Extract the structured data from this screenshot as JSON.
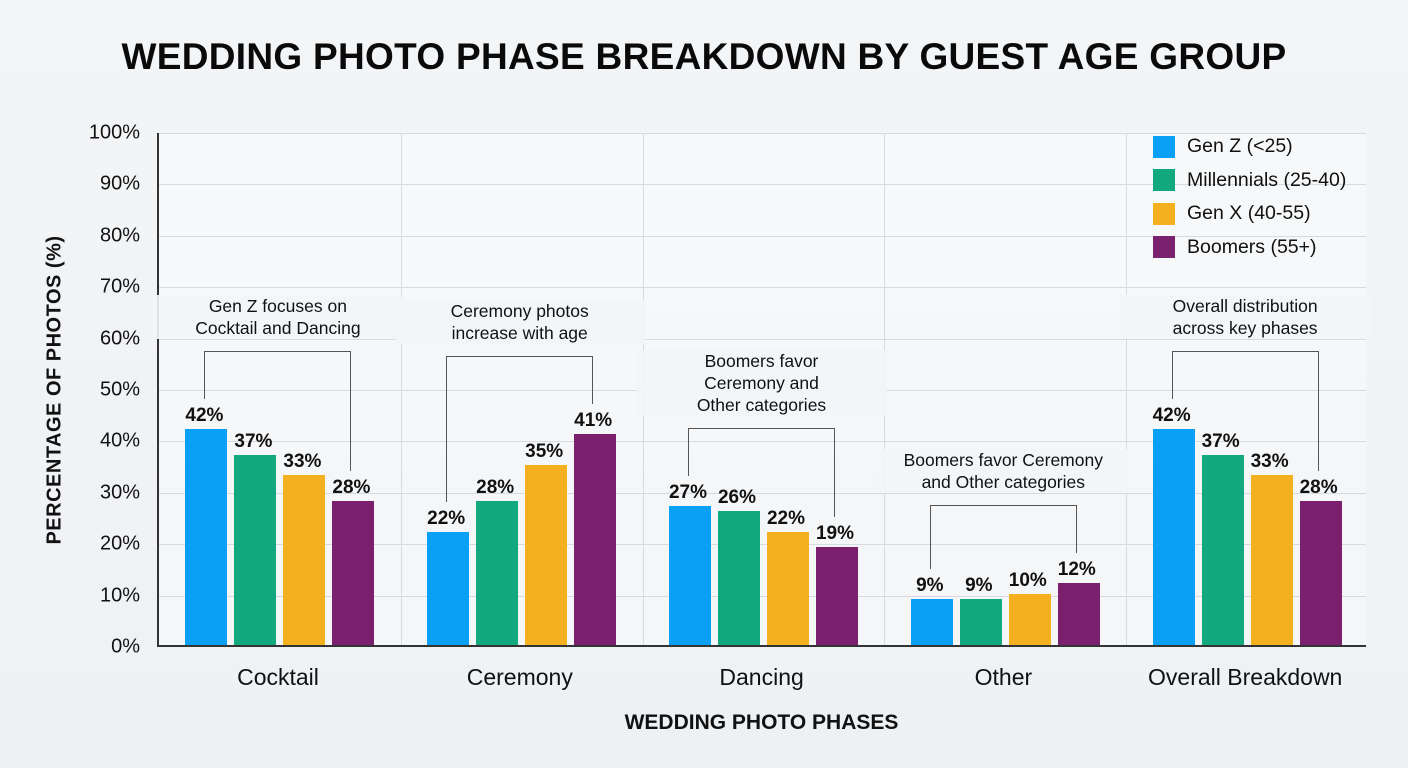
{
  "chart_data": {
    "type": "bar",
    "title": "WEDDING PHOTO PHASE BREAKDOWN BY GUEST AGE GROUP",
    "xlabel": "WEDDING PHOTO PHASES",
    "ylabel": "PERCENTAGE OF PHOTOS (%)",
    "ylim": [
      0,
      100
    ],
    "yticks": [
      "0%",
      "10%",
      "20%",
      "30%",
      "40%",
      "50%",
      "60%",
      "70%",
      "80%",
      "90%",
      "100%"
    ],
    "grid": true,
    "legend_position": "top-right",
    "categories": [
      "Cocktail",
      "Ceremony",
      "Dancing",
      "Other",
      "Overall Breakdown"
    ],
    "series": [
      {
        "name": "Gen Z (<25)",
        "color": "#0aa0f5",
        "values": [
          42,
          22,
          27,
          9,
          42
        ]
      },
      {
        "name": "Millennials (25-40)",
        "color": "#13a97f",
        "values": [
          37,
          28,
          26,
          9,
          37
        ]
      },
      {
        "name": "Gen X (40-55)",
        "color": "#f4b01f",
        "values": [
          33,
          35,
          22,
          10,
          33
        ]
      },
      {
        "name": "Boomers (55+)",
        "color": "#7a206f",
        "values": [
          28,
          41,
          19,
          12,
          28
        ]
      }
    ],
    "annotations": [
      {
        "category": "Cocktail",
        "text": "Gen Z focuses on\nCocktail and Dancing"
      },
      {
        "category": "Ceremony",
        "text": "Ceremony photos\nincrease with age"
      },
      {
        "category": "Dancing",
        "text": "Boomers favor\nCeremony and\nOther categories"
      },
      {
        "category": "Other",
        "text": "Boomers favor Ceremony\nand Other categories"
      },
      {
        "category": "Overall Breakdown",
        "text": "Overall distribution\nacross key phases"
      }
    ]
  }
}
